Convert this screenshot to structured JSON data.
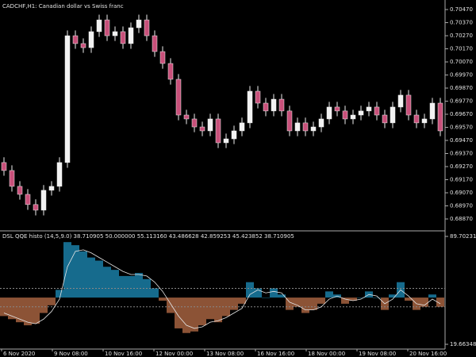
{
  "chart_data": [
    {
      "type": "candlestick",
      "title": "CADCHF,H1:  Canadian dollar vs Swiss franc",
      "x_labels": [
        "6 Nov 2020",
        "9 Nov 08:00",
        "10 Nov 16:00",
        "12 Nov 00:00",
        "13 Nov 08:00",
        "16 Nov 16:00",
        "18 Nov 00:00",
        "19 Nov 08:00",
        "20 Nov 16:00"
      ],
      "open": [
        0.69301,
        0.6924,
        0.69119,
        0.69058,
        0.6898,
        0.68937,
        0.69089,
        0.69119,
        0.69301,
        0.7027,
        0.7021,
        0.70179,
        0.70301,
        0.70391,
        0.7027,
        0.70301,
        0.7021,
        0.70331,
        0.70391,
        0.7027,
        0.70149,
        0.70058,
        0.69937,
        0.69664,
        0.69634,
        0.69573,
        0.69543,
        0.69634,
        0.69452,
        0.69482,
        0.69543,
        0.69604,
        0.69846,
        0.69755,
        0.69695,
        0.69785,
        0.69695,
        0.69543,
        0.69604,
        0.69543,
        0.69573,
        0.69634,
        0.69725,
        0.69695,
        0.69634,
        0.69664,
        0.69695,
        0.69725,
        0.69664,
        0.69604,
        0.69725,
        0.69816,
        0.69664,
        0.69604,
        0.69634,
        0.69755
      ],
      "high": [
        0.69341,
        0.6928,
        0.69159,
        0.69098,
        0.6902,
        0.69129,
        0.69159,
        0.69341,
        0.7031,
        0.7031,
        0.7025,
        0.70341,
        0.70431,
        0.70431,
        0.70341,
        0.70341,
        0.70371,
        0.70431,
        0.70431,
        0.7031,
        0.70189,
        0.70098,
        0.69977,
        0.69704,
        0.69674,
        0.69613,
        0.69674,
        0.69674,
        0.69522,
        0.69583,
        0.69644,
        0.69886,
        0.69886,
        0.69795,
        0.69825,
        0.69825,
        0.69735,
        0.69644,
        0.69644,
        0.69613,
        0.69674,
        0.69765,
        0.69765,
        0.69735,
        0.69704,
        0.69735,
        0.69765,
        0.69765,
        0.69704,
        0.69765,
        0.69856,
        0.69856,
        0.69704,
        0.69674,
        0.69795,
        0.69795
      ],
      "low": [
        0.692,
        0.69079,
        0.69018,
        0.6894,
        0.68897,
        0.68897,
        0.69049,
        0.69079,
        0.69261,
        0.7017,
        0.70139,
        0.70139,
        0.70261,
        0.7023,
        0.7023,
        0.7017,
        0.7017,
        0.70291,
        0.7023,
        0.70109,
        0.70018,
        0.69897,
        0.69624,
        0.69594,
        0.69533,
        0.69503,
        0.69503,
        0.69412,
        0.69412,
        0.69442,
        0.69503,
        0.69564,
        0.69715,
        0.69655,
        0.69655,
        0.69655,
        0.69503,
        0.69503,
        0.69503,
        0.69503,
        0.69533,
        0.69594,
        0.69655,
        0.69594,
        0.69594,
        0.69624,
        0.69655,
        0.69624,
        0.69564,
        0.69564,
        0.69685,
        0.69624,
        0.69564,
        0.69564,
        0.69594,
        0.69503
      ],
      "close": [
        0.6924,
        0.69119,
        0.69058,
        0.6898,
        0.68937,
        0.69089,
        0.69119,
        0.69301,
        0.7027,
        0.7021,
        0.70179,
        0.70301,
        0.70391,
        0.7027,
        0.70301,
        0.7021,
        0.70331,
        0.70391,
        0.7027,
        0.70149,
        0.70058,
        0.69937,
        0.69664,
        0.69634,
        0.69573,
        0.69543,
        0.69634,
        0.69452,
        0.69482,
        0.69543,
        0.69604,
        0.69846,
        0.69755,
        0.69695,
        0.69785,
        0.69695,
        0.69543,
        0.69604,
        0.69543,
        0.69573,
        0.69634,
        0.69725,
        0.69695,
        0.69634,
        0.69664,
        0.69695,
        0.69725,
        0.69664,
        0.69604,
        0.69725,
        0.69816,
        0.69664,
        0.69604,
        0.69634,
        0.69755,
        0.69543
      ],
      "up_color": "#f2f2f2",
      "down_color": "#c8507a",
      "ylim": [
        0.68779,
        0.70543
      ],
      "yticks": [
        {
          "value": 0.7047,
          "label": "0.70470"
        },
        {
          "value": 0.7037,
          "label": "0.70370"
        },
        {
          "value": 0.7027,
          "label": "0.70270"
        },
        {
          "value": 0.7017,
          "label": "0.70170"
        },
        {
          "value": 0.7007,
          "label": "0.70070"
        },
        {
          "value": 0.6997,
          "label": "0.69970"
        },
        {
          "value": 0.6987,
          "label": "0.69870"
        },
        {
          "value": 0.6977,
          "label": "0.69770"
        },
        {
          "value": 0.6967,
          "label": "0.69670"
        },
        {
          "value": 0.6957,
          "label": "0.69570"
        },
        {
          "value": 0.6947,
          "label": "0.69470"
        },
        {
          "value": 0.6937,
          "label": "0.69370"
        },
        {
          "value": 0.6927,
          "label": "0.69270"
        },
        {
          "value": 0.6917,
          "label": "0.69170"
        },
        {
          "value": 0.6907,
          "label": "0.69070"
        },
        {
          "value": 0.6897,
          "label": "0.68970"
        },
        {
          "value": 0.6887,
          "label": "0.68870"
        }
      ]
    },
    {
      "type": "combo",
      "title": "DSL QQE histo (14,5,9.0) 38.710905 50.000000 55.113160 43.486628 42.859253 45.423852 38.710905",
      "histogram": {
        "values": [
          38,
          36,
          34,
          32,
          33,
          40,
          45,
          55,
          86,
          84,
          80,
          76,
          74,
          70,
          68,
          64,
          64,
          66,
          62,
          56,
          48,
          40,
          30,
          27,
          28,
          32,
          36,
          34,
          38,
          42,
          46,
          60,
          56,
          50,
          56,
          52,
          42,
          44,
          40,
          42,
          46,
          54,
          52,
          46,
          48,
          50,
          54,
          50,
          42,
          52,
          60,
          48,
          42,
          44,
          52,
          44
        ],
        "base": 50,
        "up_color": "#1a7ea6",
        "down_color": "#a4623f"
      },
      "line": {
        "values": [
          40,
          38,
          36,
          34,
          33,
          36,
          41,
          49,
          70,
          80,
          81,
          79,
          76,
          73,
          70,
          67,
          65,
          65,
          64,
          60,
          54,
          46,
          38,
          32,
          30,
          31,
          34,
          35,
          37,
          40,
          43,
          52,
          55,
          53,
          54,
          53,
          47,
          45,
          42,
          42,
          44,
          49,
          51,
          49,
          48,
          49,
          52,
          51,
          46,
          49,
          55,
          51,
          46,
          45,
          49,
          46
        ],
        "color": "#e6e6e6"
      },
      "levels": [
        56,
        44
      ],
      "ylim": [
        19.663485,
        89.702315
      ],
      "yticks": [
        19.663485,
        89.702315
      ]
    }
  ]
}
